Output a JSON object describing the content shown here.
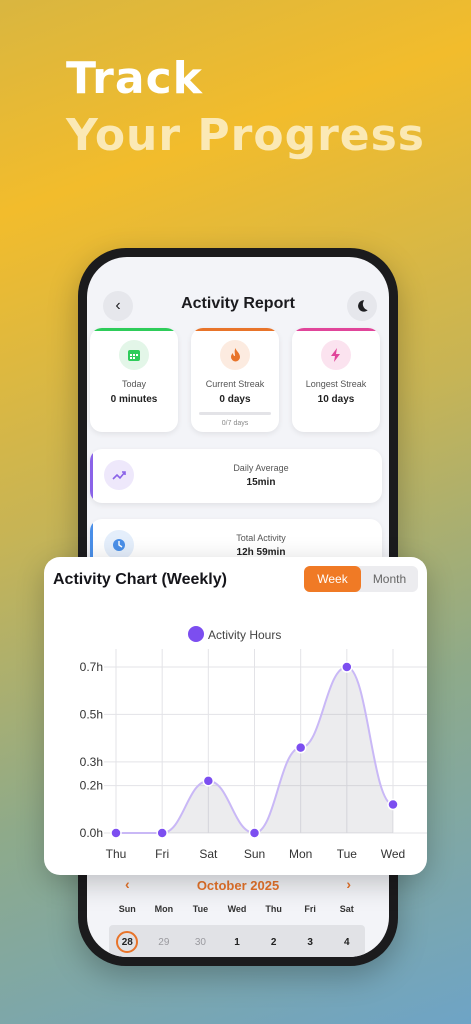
{
  "headline": {
    "line1": "Track",
    "line2": "Your Progress"
  },
  "screen": {
    "title": "Activity Report",
    "icons": {
      "back": "chevron-left-icon",
      "theme": "moon-icon"
    },
    "stats": [
      {
        "label": "Today",
        "value": "0 minutes",
        "accent": "#2ecc5a",
        "icon": "calendar-icon"
      },
      {
        "label": "Current Streak",
        "value": "0 days",
        "accent": "#e8742a",
        "icon": "flame-icon",
        "progress_text": "0/7 days",
        "progress": 0
      },
      {
        "label": "Longest Streak",
        "value": "10 days",
        "accent": "#e0459a",
        "icon": "lightning-icon"
      }
    ],
    "summary": [
      {
        "label": "Daily Average",
        "value": "15min",
        "accent": "#8a63e8",
        "icon": "trend-up-icon"
      },
      {
        "label": "Total Activity",
        "value": "12h 59min",
        "accent": "#4a8fe8",
        "icon": "clock-icon"
      }
    ],
    "calendar": {
      "month": "October 2025",
      "weekdays": [
        "Sun",
        "Mon",
        "Tue",
        "Wed",
        "Thu",
        "Fri",
        "Sat"
      ],
      "days": [
        "28",
        "29",
        "30",
        "1",
        "2",
        "3",
        "4"
      ],
      "muted_days": [
        1,
        2
      ],
      "today_index": 0
    }
  },
  "chart_card": {
    "title": "Activity Chart (Weekly)",
    "toggle": {
      "options": [
        "Week",
        "Month"
      ],
      "selected": "Week"
    }
  },
  "chart_data": {
    "type": "area",
    "categories": [
      "Thu",
      "Fri",
      "Sat",
      "Sun",
      "Mon",
      "Tue",
      "Wed"
    ],
    "series": [
      {
        "name": "Activity Hours",
        "values": [
          0.0,
          0.0,
          0.22,
          0.0,
          0.36,
          0.7,
          0.12
        ],
        "color": "#7c4ef0"
      }
    ],
    "ylim": [
      0,
      0.7
    ],
    "yticks": [
      0,
      0.2,
      0.3,
      0.5,
      0.7
    ],
    "ytick_labels": [
      "0.0h",
      "0.2h",
      "0.3h",
      "0.5h",
      "0.7h"
    ],
    "legend": "top-center",
    "grid": true
  }
}
